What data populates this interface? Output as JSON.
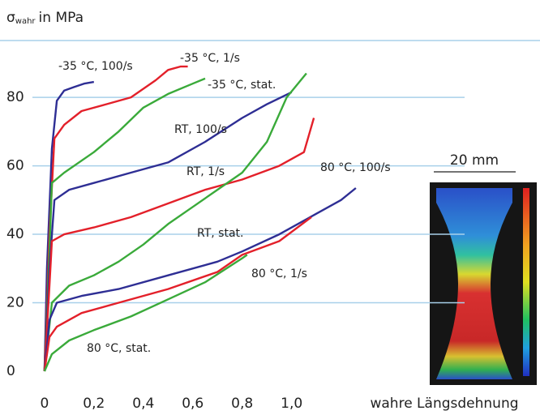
{
  "chart_data": {
    "type": "line",
    "y_label": "σ",
    "y_label_sub": "wahr",
    "y_label_rest": "in MPa",
    "x_label": "wahre Längsdehnung",
    "scale_label": "20 mm",
    "xlim": [
      -0.18,
      1.7
    ],
    "ylim": [
      0,
      96.6
    ],
    "xticks": [
      0,
      {
        "value": 0.2,
        "label": "0,2"
      },
      {
        "value": 0.4,
        "label": "0,4"
      },
      {
        "value": 0.6,
        "label": "0,6"
      },
      {
        "value": 0.8,
        "label": "0,8"
      },
      {
        "value": 1.0,
        "label": "1,0"
      }
    ],
    "yticks": [
      0,
      20,
      40,
      60,
      80
    ],
    "grid": true,
    "series": [
      {
        "name": "-35 °C, 100/s",
        "color": "#2e2e94",
        "x": [
          0,
          0.01,
          0.03,
          0.05,
          0.08,
          0.12,
          0.16,
          0.2
        ],
        "values": [
          0,
          30,
          65,
          79,
          82,
          83,
          84,
          84.5
        ]
      },
      {
        "name": "-35 °C, 1/s",
        "color": "#e3202a",
        "x": [
          0,
          0.02,
          0.04,
          0.08,
          0.15,
          0.25,
          0.35,
          0.45,
          0.5,
          0.55,
          0.58
        ],
        "values": [
          0,
          40,
          68,
          72,
          76,
          78,
          80,
          85,
          88,
          89,
          89
        ]
      },
      {
        "name": "-35 °C, stat.",
        "color": "#3aaa3a",
        "x": [
          0,
          0.02,
          0.03,
          0.08,
          0.2,
          0.3,
          0.4,
          0.5,
          0.6,
          0.65
        ],
        "values": [
          0,
          35,
          55,
          58,
          64,
          70,
          77,
          81,
          84,
          85.5
        ]
      },
      {
        "name": "RT, 100/s",
        "color": "#2e2e94",
        "x": [
          0,
          0.02,
          0.04,
          0.1,
          0.2,
          0.35,
          0.5,
          0.65,
          0.8,
          0.9,
          1.0
        ],
        "values": [
          0,
          30,
          50,
          53,
          55,
          58,
          61,
          67,
          74,
          78,
          81.5
        ]
      },
      {
        "name": "RT, 1/s",
        "color": "#e3202a",
        "x": [
          0,
          0.02,
          0.03,
          0.08,
          0.2,
          0.35,
          0.5,
          0.65,
          0.8,
          0.95,
          1.05,
          1.09
        ],
        "values": [
          0,
          25,
          38,
          40,
          42,
          45,
          49,
          53,
          56,
          60,
          64,
          74
        ]
      },
      {
        "name": "RT, stat.",
        "color": "#3aaa3a",
        "x": [
          0,
          0.03,
          0.1,
          0.2,
          0.3,
          0.4,
          0.5,
          0.6,
          0.7,
          0.8,
          0.9,
          0.98,
          1.06
        ],
        "values": [
          0,
          20,
          25,
          28,
          32,
          37,
          43,
          48,
          53,
          58,
          67,
          80,
          87
        ]
      },
      {
        "name": "80 °C, 100/s",
        "color": "#2e2e94",
        "x": [
          0,
          0.02,
          0.05,
          0.15,
          0.3,
          0.5,
          0.7,
          0.8,
          0.95,
          1.1,
          1.2,
          1.26
        ],
        "values": [
          0,
          15,
          20,
          22,
          24,
          28,
          32,
          35,
          40,
          46,
          50,
          53.5
        ]
      },
      {
        "name": "80 °C, 1/s",
        "color": "#e3202a",
        "x": [
          0,
          0.02,
          0.05,
          0.15,
          0.3,
          0.5,
          0.7,
          0.8,
          0.95,
          1.08
        ],
        "values": [
          0,
          10,
          13,
          17,
          20,
          24,
          29,
          34,
          38,
          45
        ]
      },
      {
        "name": "80 °C, stat.",
        "color": "#3aaa3a",
        "x": [
          0,
          0.03,
          0.1,
          0.2,
          0.35,
          0.5,
          0.65,
          0.8,
          0.82
        ],
        "values": [
          0,
          5,
          9,
          12,
          16,
          21,
          26,
          33,
          34
        ]
      }
    ]
  }
}
